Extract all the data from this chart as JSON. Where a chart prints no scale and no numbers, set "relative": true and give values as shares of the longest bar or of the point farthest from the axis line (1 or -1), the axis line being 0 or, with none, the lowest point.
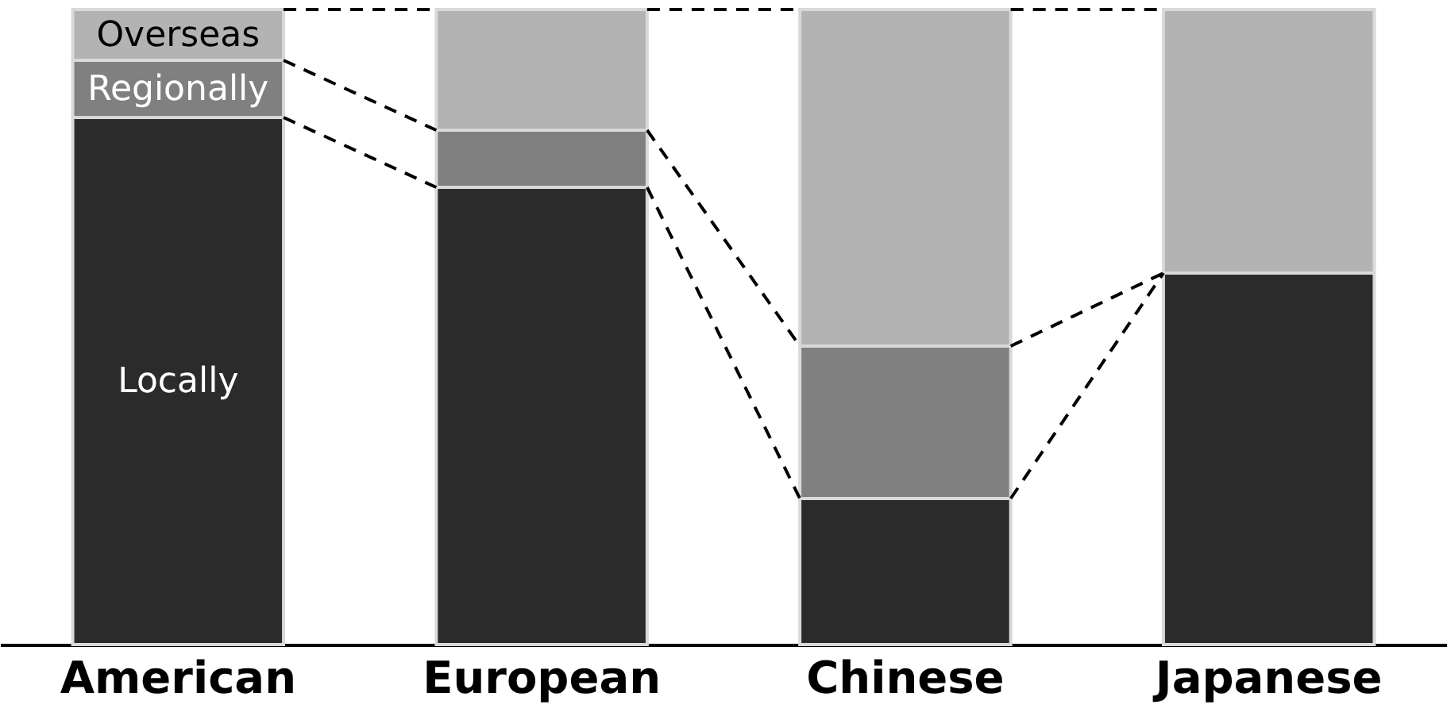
{
  "chart_data": {
    "type": "bar",
    "stacked": true,
    "relative": true,
    "categories": [
      "American",
      "European",
      "Chinese",
      "Japanese"
    ],
    "series": [
      {
        "name": "Locally",
        "color": "#2b2b2b",
        "values": [
          0.83,
          0.72,
          0.23,
          0.585
        ]
      },
      {
        "name": "Regionally",
        "color": "#808080",
        "values": [
          0.09,
          0.09,
          0.24,
          0
        ]
      },
      {
        "name": "Overseas",
        "color": "#b3b3b3",
        "values": [
          0.08,
          0.19,
          0.53,
          0.415
        ]
      }
    ]
  }
}
